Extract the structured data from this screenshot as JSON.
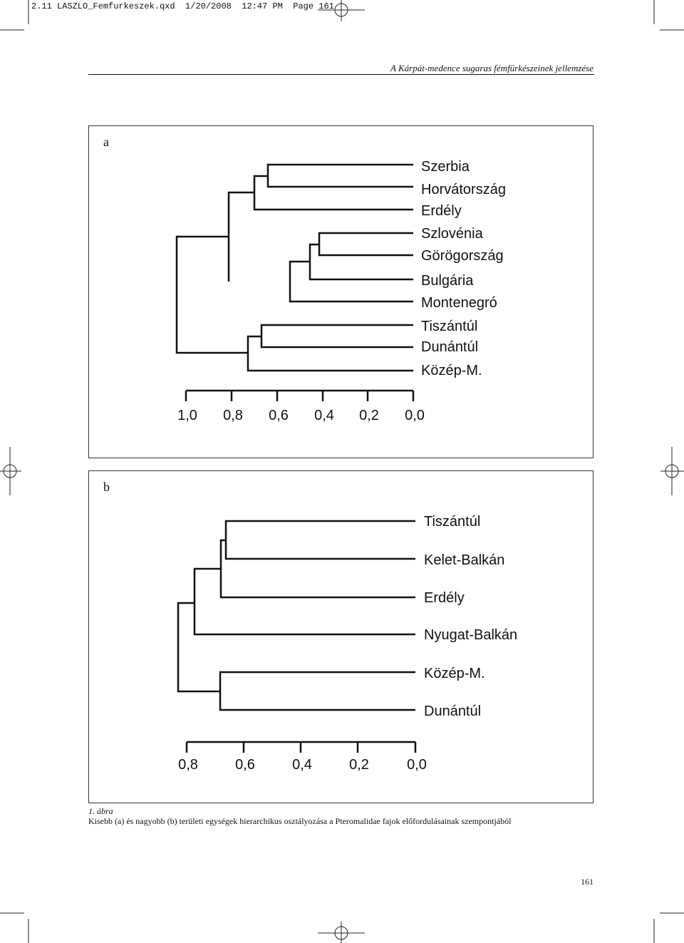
{
  "slug": "2.11 LASZLO_Femfurkeszek.qxd  1/20/2008  12:47 PM  Page 161",
  "running_head": "A Kárpát-medence sugaras fémfürkészeinek jellemzése",
  "panel_a": {
    "letter": "a",
    "leaves": [
      "Szerbia",
      "Horvátország",
      "Erdély",
      "Szlovénia",
      "Görögország",
      "Bulgária",
      "Montenegró",
      "Tiszántúl",
      "Dunántúl",
      "Közép-M."
    ],
    "axis_ticks": [
      "1,0",
      "0,8",
      "0,6",
      "0,4",
      "0,2",
      "0,0"
    ]
  },
  "panel_b": {
    "letter": "b",
    "leaves": [
      "Tiszántúl",
      "Kelet-Balkán",
      "Erdély",
      "Nyugat-Balkán",
      "Közép-M.",
      "Dunántúl"
    ],
    "axis_ticks": [
      "0,8",
      "0,6",
      "0,4",
      "0,2",
      "0,0"
    ]
  },
  "caption": {
    "title": "1. ábra",
    "text": "Kisebb (a) és nagyobb (b) területi egységek hierarchikus osztályozása a Pteromalidae fajok előfordulásainak szempontjából"
  },
  "folio": "161"
}
